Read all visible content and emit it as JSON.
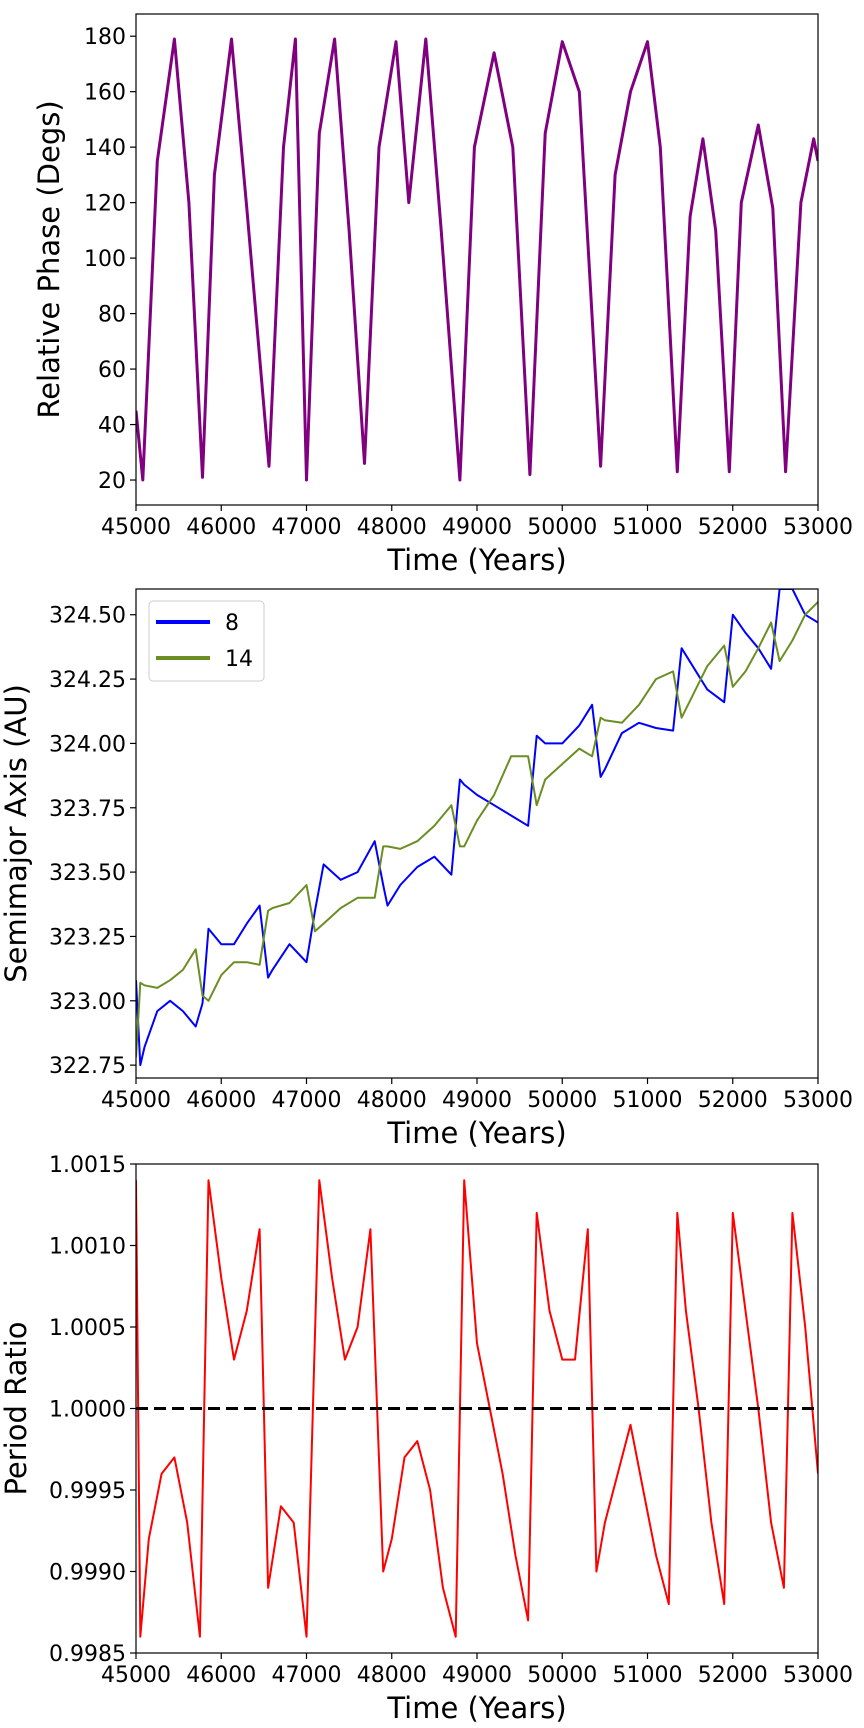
{
  "colors": {
    "phase": "#800080",
    "series_8": "#0000ff",
    "series_14": "#6b8e23",
    "ratio": "#ff0000",
    "reference": "#000000"
  },
  "chart_data": [
    {
      "type": "line",
      "title": "",
      "xlabel": "Time (Years)",
      "ylabel": "Relative Phase (Degs)",
      "xlim": [
        45000,
        53000
      ],
      "ylim": [
        11,
        188
      ],
      "xticks": [
        45000,
        46000,
        47000,
        48000,
        49000,
        50000,
        51000,
        52000,
        53000
      ],
      "xtick_labels": [
        "45000",
        "46000",
        "47000",
        "48000",
        "49000",
        "50000",
        "51000",
        "52000",
        "53000"
      ],
      "yticks": [
        20,
        40,
        60,
        80,
        100,
        120,
        140,
        160,
        180
      ],
      "ytick_labels": [
        "20",
        "40",
        "60",
        "80",
        "100",
        "120",
        "140",
        "160",
        "180"
      ],
      "grid": false,
      "legend": null,
      "series": [
        {
          "color": "#800080",
          "x": [
            45000,
            45080,
            45250,
            45450,
            45620,
            45780,
            45920,
            46120,
            46300,
            46560,
            46730,
            46870,
            47000,
            47150,
            47330,
            47500,
            47680,
            47850,
            48050,
            48200,
            48400,
            48580,
            48800,
            48970,
            49200,
            49420,
            49620,
            49800,
            50000,
            50200,
            50450,
            50620,
            50800,
            51000,
            51150,
            51350,
            51500,
            51650,
            51800,
            51960,
            52100,
            52300,
            52470,
            52620,
            52800,
            52950,
            53000
          ],
          "y": [
            45,
            20,
            135,
            179,
            120,
            21,
            130,
            179,
            118,
            25,
            140,
            179,
            20,
            145,
            179,
            110,
            26,
            140,
            178,
            120,
            179,
            110,
            20,
            140,
            174,
            140,
            22,
            145,
            178,
            160,
            25,
            130,
            160,
            178,
            140,
            23,
            115,
            143,
            110,
            23,
            120,
            148,
            118,
            23,
            120,
            143,
            135
          ]
        }
      ]
    },
    {
      "type": "line",
      "title": "",
      "xlabel": "Time (Years)",
      "ylabel": "Semimajor Axis (AU)",
      "xlim": [
        45000,
        53000
      ],
      "ylim": [
        322.7,
        324.6
      ],
      "xticks": [
        45000,
        46000,
        47000,
        48000,
        49000,
        50000,
        51000,
        52000,
        53000
      ],
      "xtick_labels": [
        "45000",
        "46000",
        "47000",
        "48000",
        "49000",
        "50000",
        "51000",
        "52000",
        "53000"
      ],
      "yticks": [
        322.75,
        323.0,
        323.25,
        323.5,
        323.75,
        324.0,
        324.25,
        324.5
      ],
      "ytick_labels": [
        "322.75",
        "323.00",
        "323.25",
        "323.50",
        "323.75",
        "324.00",
        "324.25",
        "324.50"
      ],
      "grid": false,
      "legend": "top-left",
      "series": [
        {
          "name": "8",
          "color": "#0000ff",
          "x": [
            45000,
            45050,
            45100,
            45250,
            45400,
            45550,
            45700,
            45780,
            45850,
            46000,
            46150,
            46300,
            46450,
            46550,
            46600,
            46800,
            47000,
            47100,
            47200,
            47400,
            47600,
            47800,
            47900,
            47950,
            48100,
            48300,
            48500,
            48700,
            48800,
            48850,
            49000,
            49200,
            49400,
            49600,
            49700,
            49800,
            50000,
            50200,
            50350,
            50450,
            50500,
            50700,
            50900,
            51100,
            51300,
            51400,
            51550,
            51700,
            51900,
            52000,
            52150,
            52300,
            52450,
            52550,
            52700,
            52850,
            53000
          ],
          "y": [
            323.08,
            322.75,
            322.82,
            322.96,
            323.0,
            322.96,
            322.9,
            322.99,
            323.28,
            323.22,
            323.22,
            323.3,
            323.37,
            323.09,
            323.12,
            323.22,
            323.15,
            323.35,
            323.53,
            323.47,
            323.5,
            323.62,
            323.45,
            323.37,
            323.45,
            323.52,
            323.56,
            323.49,
            323.86,
            323.84,
            323.8,
            323.76,
            323.72,
            323.68,
            324.03,
            324.0,
            324.0,
            324.07,
            324.15,
            323.87,
            323.9,
            324.04,
            324.08,
            324.06,
            324.05,
            324.37,
            324.29,
            324.21,
            324.16,
            324.5,
            324.43,
            324.37,
            324.29,
            324.6,
            324.6,
            324.5,
            324.47
          ]
        },
        {
          "name": "14",
          "color": "#6b8e23",
          "x": [
            45000,
            45050,
            45100,
            45250,
            45400,
            45550,
            45700,
            45780,
            45850,
            46000,
            46150,
            46300,
            46450,
            46550,
            46600,
            46800,
            47000,
            47100,
            47200,
            47400,
            47600,
            47800,
            47900,
            47950,
            48100,
            48300,
            48500,
            48700,
            48800,
            48850,
            49000,
            49200,
            49400,
            49600,
            49700,
            49800,
            50000,
            50200,
            50350,
            50450,
            50500,
            50700,
            50900,
            51100,
            51300,
            51400,
            51550,
            51700,
            51900,
            52000,
            52150,
            52300,
            52450,
            52550,
            52700,
            52850,
            53000
          ],
          "y": [
            322.78,
            323.07,
            323.06,
            323.05,
            323.08,
            323.12,
            323.2,
            323.02,
            323.0,
            323.1,
            323.15,
            323.15,
            323.14,
            323.35,
            323.36,
            323.38,
            323.45,
            323.27,
            323.3,
            323.36,
            323.4,
            323.4,
            323.6,
            323.6,
            323.59,
            323.62,
            323.68,
            323.76,
            323.6,
            323.6,
            323.7,
            323.8,
            323.95,
            323.95,
            323.76,
            323.86,
            323.92,
            323.98,
            323.95,
            324.1,
            324.09,
            324.08,
            324.15,
            324.25,
            324.28,
            324.1,
            324.2,
            324.3,
            324.38,
            324.22,
            324.28,
            324.37,
            324.47,
            324.32,
            324.4,
            324.5,
            324.55
          ]
        }
      ]
    },
    {
      "type": "line",
      "title": "",
      "xlabel": "Time (Years)",
      "ylabel": "Period Ratio",
      "xlim": [
        45000,
        53000
      ],
      "ylim": [
        0.9985,
        1.0015
      ],
      "xticks": [
        45000,
        46000,
        47000,
        48000,
        49000,
        50000,
        51000,
        52000,
        53000
      ],
      "xtick_labels": [
        "45000",
        "46000",
        "47000",
        "48000",
        "49000",
        "50000",
        "51000",
        "52000",
        "53000"
      ],
      "yticks": [
        0.9985,
        0.999,
        0.9995,
        1.0,
        1.0005,
        1.001,
        1.0015
      ],
      "ytick_labels": [
        "0.9985",
        "0.9990",
        "0.9995",
        "1.0000",
        "1.0005",
        "1.0010",
        "1.0015"
      ],
      "grid": false,
      "legend": null,
      "reference_line": {
        "y": 1.0,
        "style": "dashed"
      },
      "series": [
        {
          "color": "#ff0000",
          "x": [
            45000,
            45050,
            45150,
            45300,
            45450,
            45600,
            45750,
            45850,
            46000,
            46150,
            46300,
            46450,
            46550,
            46700,
            46850,
            47000,
            47150,
            47300,
            47450,
            47600,
            47750,
            47900,
            48000,
            48150,
            48300,
            48450,
            48600,
            48750,
            48850,
            49000,
            49150,
            49300,
            49450,
            49600,
            49700,
            49850,
            50000,
            50150,
            50300,
            50400,
            50500,
            50650,
            50800,
            50950,
            51100,
            51250,
            51350,
            51450,
            51600,
            51750,
            51900,
            52000,
            52150,
            52300,
            52450,
            52600,
            52700,
            52850,
            53000
          ],
          "y": [
            1.0014,
            0.9986,
            0.9992,
            0.9996,
            0.9997,
            0.9993,
            0.9986,
            1.0014,
            1.0008,
            1.0003,
            1.0006,
            1.0011,
            0.9989,
            0.9994,
            0.9993,
            0.9986,
            1.0014,
            1.0008,
            1.0003,
            1.0005,
            1.0011,
            0.999,
            0.9992,
            0.9997,
            0.9998,
            0.9995,
            0.9989,
            0.9986,
            1.0014,
            1.0004,
            1.0,
            0.9996,
            0.9991,
            0.9987,
            1.0012,
            1.0006,
            1.0003,
            1.0003,
            1.0011,
            0.999,
            0.9993,
            0.9996,
            0.9999,
            0.9995,
            0.9991,
            0.9988,
            1.0012,
            1.0006,
            1.0,
            0.9993,
            0.9988,
            1.0012,
            1.0006,
            1.0,
            0.9993,
            0.9989,
            1.0012,
            1.0005,
            0.9996
          ]
        }
      ]
    }
  ]
}
